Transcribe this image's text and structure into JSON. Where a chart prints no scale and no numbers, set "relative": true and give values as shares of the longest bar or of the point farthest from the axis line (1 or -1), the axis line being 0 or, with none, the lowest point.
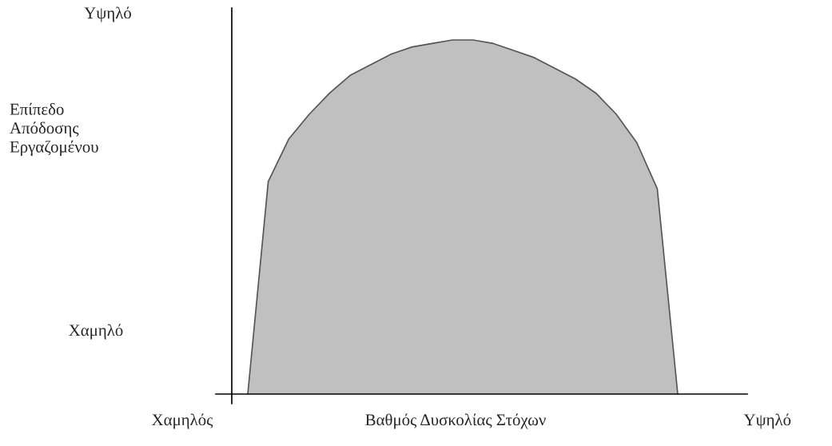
{
  "chart_data": {
    "type": "area",
    "relative": true,
    "color": "#c0c0c0",
    "xlabel": "Βαθμός Δυσκολίας Στόχων",
    "annotations": [
      "Επίπεδο\nΑπόδοσης\nΕργαζομένου",
      "Υψηλό",
      "Χαμηλό",
      "Χαμηλός",
      "Υψηλό"
    ],
    "categories": [
      null,
      null,
      null,
      null,
      null,
      null,
      null,
      null,
      null,
      null,
      null,
      null,
      null,
      null,
      null,
      null,
      null,
      null,
      null,
      null,
      null,
      null
    ],
    "values": [
      0,
      0.6,
      0.72,
      0.79,
      0.85,
      0.9,
      0.93,
      0.96,
      0.98,
      0.99,
      1.0,
      1.0,
      0.99,
      0.97,
      0.95,
      0.92,
      0.89,
      0.85,
      0.79,
      0.71,
      0.58,
      0
    ],
    "legend": false
  }
}
